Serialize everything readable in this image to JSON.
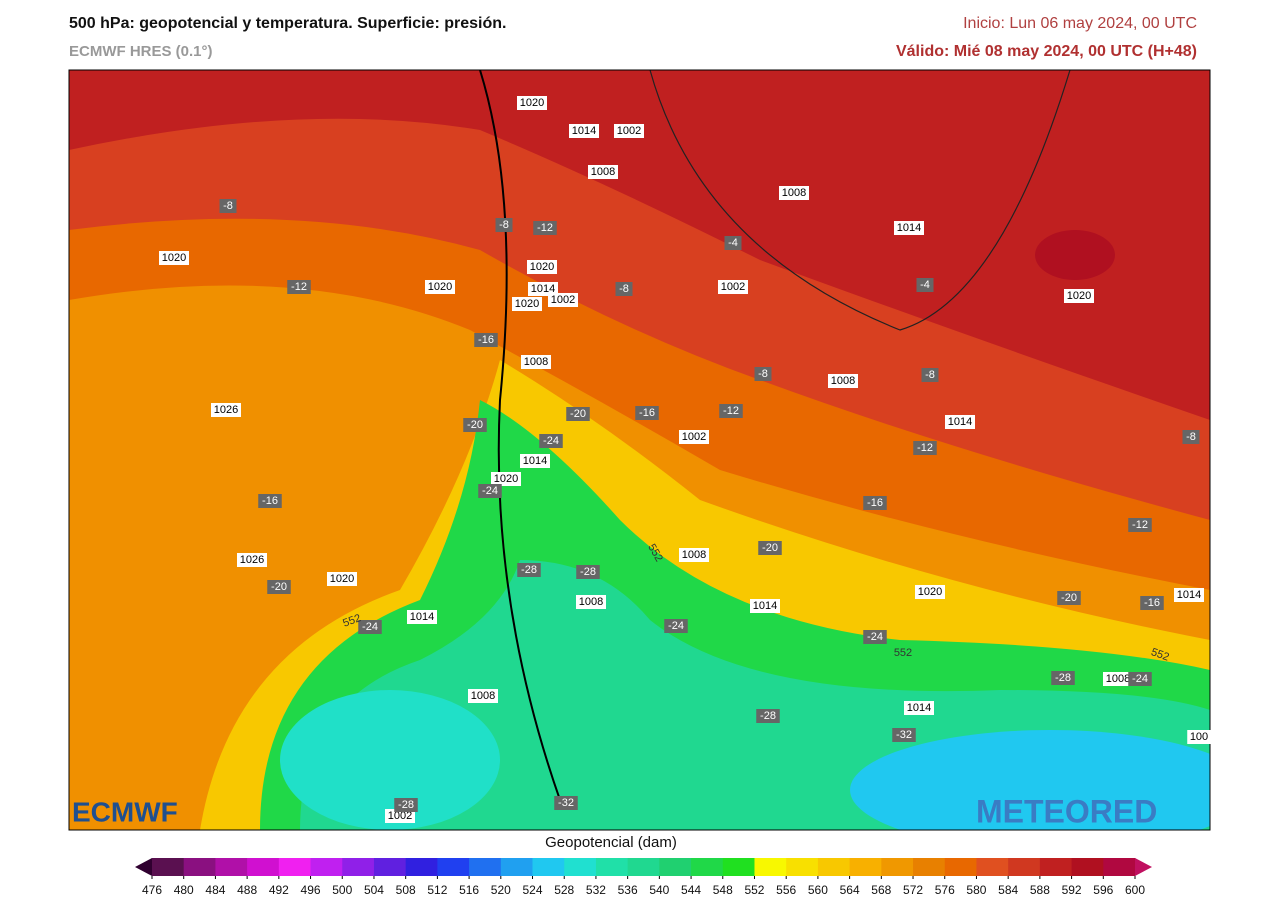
{
  "header": {
    "title": "500 hPa: geopotencial y temperatura. Superficie: presión.",
    "model": "ECMWF HRES (0.1°)",
    "init": "Inicio: Lun 06 may 2024, 00 UTC",
    "valid": "Válido: Mié 08 may 2024, 00 UTC (H+48)"
  },
  "map": {
    "pressure_labels": [
      "1020",
      "1014",
      "1002",
      "1008",
      "1008",
      "1014",
      "1020",
      "1020",
      "1020",
      "1014",
      "1002",
      "1020",
      "1002",
      "1020",
      "1008",
      "1008",
      "1026",
      "1014",
      "1002",
      "1014",
      "1020",
      "1026",
      "1008",
      "1020",
      "1008",
      "1014",
      "1020",
      "1014",
      "1014",
      "1008",
      "1008",
      "1014",
      "1002",
      "100"
    ],
    "temperature_labels": [
      "-8",
      "-8",
      "-12",
      "-12",
      "-8",
      "-4",
      "-4",
      "-16",
      "-8",
      "-8",
      "-12",
      "-16",
      "-20",
      "-20",
      "-24",
      "-8",
      "-12",
      "-24",
      "-16",
      "-16",
      "-12",
      "-20",
      "-20",
      "-28",
      "-28",
      "-24",
      "-24",
      "-24",
      "-20",
      "-16",
      "-28",
      "-24",
      "-28",
      "-32",
      "-28",
      "-32"
    ],
    "geopotential_labels": [
      "552",
      "552",
      "552",
      "552"
    ],
    "logos": {
      "left": "ECMWF",
      "right": "METEORED"
    }
  },
  "colorbar": {
    "label": "Geopotencial (dam)",
    "ticks": [
      476,
      480,
      484,
      488,
      492,
      496,
      500,
      504,
      508,
      512,
      516,
      520,
      524,
      528,
      532,
      536,
      540,
      544,
      548,
      552,
      556,
      560,
      564,
      568,
      572,
      576,
      580,
      584,
      588,
      592,
      596,
      600
    ],
    "colors": [
      "#5a1050",
      "#8a1080",
      "#b010a8",
      "#d010d0",
      "#f020f0",
      "#c020f0",
      "#9020e8",
      "#6020e0",
      "#3020e0",
      "#2040f0",
      "#2070f0",
      "#20a0f0",
      "#20c8f0",
      "#20e0d0",
      "#20e0a8",
      "#20d890",
      "#20d070",
      "#20d848",
      "#20e020",
      "#f8f800",
      "#f8e000",
      "#f8c800",
      "#f8b000",
      "#f09800",
      "#e88000",
      "#e86800",
      "#e05020",
      "#d03820",
      "#c02020",
      "#b01020",
      "#b00840"
    ],
    "under_color": "#300030",
    "over_color": "#c01060"
  }
}
